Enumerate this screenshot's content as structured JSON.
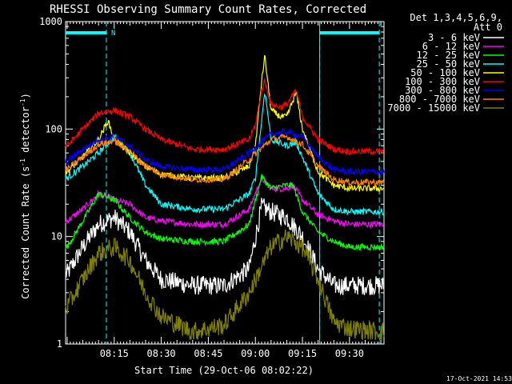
{
  "chart_data": {
    "type": "line",
    "title": "RHESSI Observing Summary Count Rates, Corrected",
    "xlabel": "Start Time (29-Oct-06 08:02:22)",
    "ylabel_main": "Corrected Count Rate (s",
    "ylabel_sup1": "-1",
    "ylabel_mid": " detector",
    "ylabel_sup2": "-1",
    "ylabel_end": ")",
    "yscale": "log",
    "ylim": [
      1,
      1000
    ],
    "xlim": [
      "07:59:30",
      "09:41:00"
    ],
    "x_ticks": [
      "08:15",
      "08:30",
      "08:45",
      "09:00",
      "09:15",
      "09:30"
    ],
    "y_ticks": [
      "1",
      "10",
      "100",
      "1000"
    ],
    "legend_header": [
      "Det 1,3,4,5,6,9,",
      "Att 0"
    ],
    "legend_position": "right",
    "timestamp": "17-Oct-2021 14:53",
    "annotations": {
      "flag_label": "N",
      "flag_color": "#00ffff",
      "dashed_lines": [
        "08:12:30",
        "09:20:30",
        "09:39:30"
      ],
      "solid_lines": [
        "09:20:30"
      ],
      "flag_bars": [
        [
          "07:59:30",
          "08:12:30"
        ],
        [
          "09:20:30",
          "09:39:30"
        ]
      ]
    },
    "series": [
      {
        "name": "3 - 6 keV",
        "color": "#ffffff",
        "x": [
          "08:00",
          "08:05",
          "08:10",
          "08:15",
          "08:20",
          "08:25",
          "08:30",
          "08:40",
          "08:50",
          "08:58",
          "09:02",
          "09:05",
          "09:10",
          "09:15",
          "09:20",
          "09:25",
          "09:30",
          "09:40"
        ],
        "y": [
          4.5,
          8,
          13,
          15,
          11,
          6,
          4,
          3.5,
          3.5,
          5,
          19,
          17,
          15,
          10,
          5,
          3.5,
          3.5,
          3.5
        ]
      },
      {
        "name": "6 - 12 keV",
        "color": "#ff00ff",
        "x": [
          "08:00",
          "08:05",
          "08:10",
          "08:15",
          "08:20",
          "08:25",
          "08:30",
          "08:40",
          "08:50",
          "08:58",
          "09:02",
          "09:05",
          "09:10",
          "09:12",
          "09:15",
          "09:20",
          "09:25",
          "09:30",
          "09:40"
        ],
        "y": [
          14,
          18,
          25,
          22,
          20,
          15,
          14,
          13,
          13,
          18,
          35,
          28,
          28,
          30,
          22,
          16,
          14,
          13,
          13
        ]
      },
      {
        "name": "12 - 25 keV",
        "color": "#00ff00",
        "x": [
          "08:00",
          "08:05",
          "08:10",
          "08:15",
          "08:20",
          "08:25",
          "08:30",
          "08:40",
          "08:50",
          "08:58",
          "09:02",
          "09:05",
          "09:10",
          "09:12",
          "09:15",
          "09:20",
          "09:25",
          "09:30",
          "09:40"
        ],
        "y": [
          8,
          14,
          25,
          22,
          15,
          11,
          9.5,
          9,
          9,
          13,
          36,
          28,
          30,
          30,
          17,
          11,
          9,
          8,
          8
        ]
      },
      {
        "name": "25 - 50 keV",
        "color": "#00ffff",
        "x": [
          "08:00",
          "08:05",
          "08:10",
          "08:15",
          "08:20",
          "08:25",
          "08:30",
          "08:40",
          "08:50",
          "08:58",
          "09:00",
          "09:02",
          "09:03",
          "09:05",
          "09:10",
          "09:13",
          "09:15",
          "09:20",
          "09:25",
          "09:30",
          "09:40"
        ],
        "y": [
          35,
          45,
          60,
          85,
          60,
          30,
          20,
          18,
          18,
          25,
          35,
          120,
          230,
          80,
          70,
          75,
          55,
          25,
          18,
          17,
          17
        ]
      },
      {
        "name": "50 - 100 keV",
        "color": "#ffff00",
        "x": [
          "08:00",
          "08:05",
          "08:10",
          "08:13",
          "08:15",
          "08:20",
          "08:25",
          "08:30",
          "08:40",
          "08:50",
          "08:58",
          "09:00",
          "09:02",
          "09:03",
          "09:05",
          "09:08",
          "09:10",
          "09:13",
          "09:15",
          "09:20",
          "09:25",
          "09:30",
          "09:40"
        ],
        "y": [
          40,
          55,
          80,
          120,
          80,
          60,
          45,
          38,
          35,
          35,
          45,
          70,
          280,
          480,
          150,
          130,
          130,
          220,
          100,
          40,
          30,
          28,
          28
        ]
      },
      {
        "name": "100 - 300 keV",
        "color": "#ff0000",
        "x": [
          "08:00",
          "08:05",
          "08:10",
          "08:15",
          "08:20",
          "08:25",
          "08:30",
          "08:40",
          "08:50",
          "08:58",
          "09:00",
          "09:02",
          "09:03",
          "09:05",
          "09:08",
          "09:10",
          "09:13",
          "09:15",
          "09:20",
          "09:25",
          "09:30",
          "09:40"
        ],
        "y": [
          70,
          100,
          140,
          150,
          130,
          100,
          80,
          65,
          65,
          80,
          110,
          230,
          280,
          170,
          160,
          170,
          230,
          130,
          80,
          65,
          62,
          62
        ]
      },
      {
        "name": "300 - 800 keV",
        "color": "#0000ff",
        "x": [
          "08:00",
          "08:05",
          "08:10",
          "08:15",
          "08:20",
          "08:25",
          "08:30",
          "08:40",
          "08:50",
          "08:58",
          "09:05",
          "09:10",
          "09:15",
          "09:20",
          "09:25",
          "09:30",
          "09:40"
        ],
        "y": [
          50,
          65,
          80,
          85,
          70,
          52,
          45,
          42,
          42,
          60,
          90,
          95,
          85,
          55,
          42,
          40,
          40
        ]
      },
      {
        "name": "800 - 7000 keV",
        "color": "#ff8000",
        "x": [
          "08:00",
          "08:05",
          "08:10",
          "08:15",
          "08:20",
          "08:25",
          "08:30",
          "08:40",
          "08:50",
          "08:58",
          "09:05",
          "09:10",
          "09:15",
          "09:20",
          "09:25",
          "09:30",
          "09:40"
        ],
        "y": [
          42,
          55,
          72,
          78,
          62,
          45,
          38,
          34,
          34,
          52,
          80,
          85,
          72,
          45,
          34,
          32,
          32
        ]
      },
      {
        "name": "7000 - 15000 keV",
        "color": "#808000",
        "x": [
          "08:00",
          "08:05",
          "08:10",
          "08:15",
          "08:20",
          "08:25",
          "08:30",
          "08:40",
          "08:50",
          "08:58",
          "09:05",
          "09:10",
          "09:15",
          "09:20",
          "09:25",
          "09:30",
          "09:40"
        ],
        "y": [
          2.2,
          4,
          7,
          8,
          6,
          3,
          1.8,
          1.3,
          1.5,
          3,
          8,
          10,
          8,
          4,
          1.6,
          1.4,
          1.3
        ]
      }
    ]
  }
}
